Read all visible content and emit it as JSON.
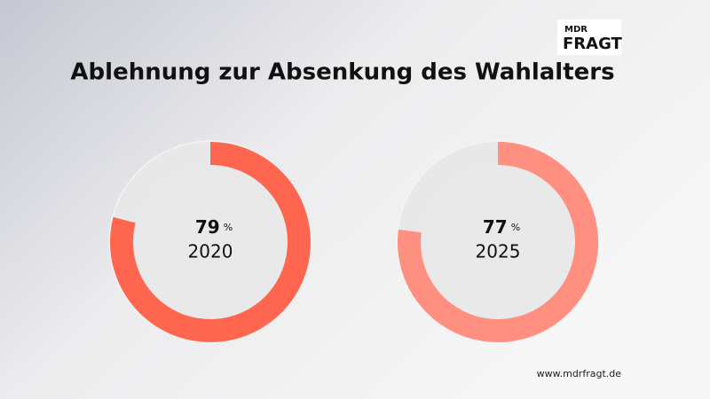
{
  "title": "Ablehnung zur Absenkung des Wahlalters",
  "logo": {
    "line1": "MDR",
    "line2": "FRAGT"
  },
  "footer": "www.mdrfragt.de",
  "chart_data": [
    {
      "type": "donut",
      "title": "2020",
      "values": [
        79
      ],
      "unit": "%",
      "ylim": [
        0,
        100
      ],
      "color": "#ff6650",
      "track_color": "#e8e8e8"
    },
    {
      "type": "donut",
      "title": "2025",
      "values": [
        77
      ],
      "unit": "%",
      "ylim": [
        0,
        100
      ],
      "color": "#ff8f80",
      "track_color": "#e8e8e8"
    }
  ]
}
